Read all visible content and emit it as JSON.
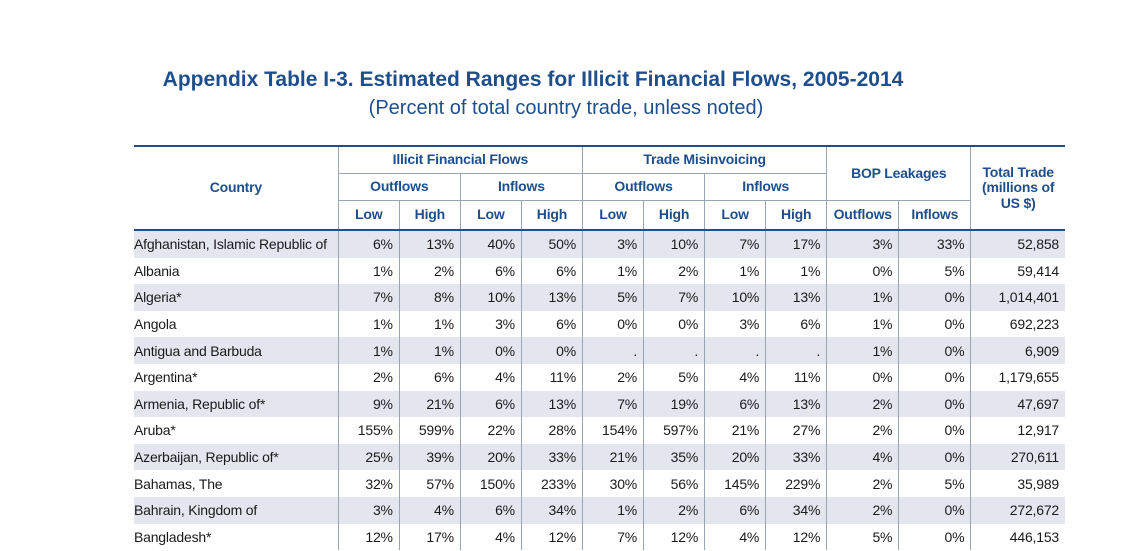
{
  "title": "Appendix Table I-3. Estimated Ranges for Illicit Financial Flows, 2005-2014",
  "subtitle": "(Percent of total country trade, unless noted)",
  "headers": {
    "country": "Country",
    "iff": "Illicit Financial Flows",
    "trade_misinvoicing": "Trade Misinvoicing",
    "bop_leakages": "BOP Leakages",
    "total_trade": "Total Trade (millions of US $)",
    "outflows": "Outflows",
    "inflows": "Inflows",
    "low": "Low",
    "high": "High"
  },
  "rows": [
    {
      "country": "Afghanistan, Islamic Republic of",
      "vals": [
        "6%",
        "13%",
        "40%",
        "50%",
        "3%",
        "10%",
        "7%",
        "17%",
        "3%",
        "33%",
        "52,858"
      ]
    },
    {
      "country": "Albania",
      "vals": [
        "1%",
        "2%",
        "6%",
        "6%",
        "1%",
        "2%",
        "1%",
        "1%",
        "0%",
        "5%",
        "59,414"
      ]
    },
    {
      "country": "Algeria*",
      "vals": [
        "7%",
        "8%",
        "10%",
        "13%",
        "5%",
        "7%",
        "10%",
        "13%",
        "1%",
        "0%",
        "1,014,401"
      ]
    },
    {
      "country": "Angola",
      "vals": [
        "1%",
        "1%",
        "3%",
        "6%",
        "0%",
        "0%",
        "3%",
        "6%",
        "1%",
        "0%",
        "692,223"
      ]
    },
    {
      "country": "Antigua and Barbuda",
      "vals": [
        "1%",
        "1%",
        "0%",
        "0%",
        ".",
        ".",
        ".",
        ".",
        "1%",
        "0%",
        "6,909"
      ]
    },
    {
      "country": "Argentina*",
      "vals": [
        "2%",
        "6%",
        "4%",
        "11%",
        "2%",
        "5%",
        "4%",
        "11%",
        "0%",
        "0%",
        "1,179,655"
      ]
    },
    {
      "country": "Armenia, Republic of*",
      "vals": [
        "9%",
        "21%",
        "6%",
        "13%",
        "7%",
        "19%",
        "6%",
        "13%",
        "2%",
        "0%",
        "47,697"
      ]
    },
    {
      "country": "Aruba*",
      "vals": [
        "155%",
        "599%",
        "22%",
        "28%",
        "154%",
        "597%",
        "21%",
        "27%",
        "2%",
        "0%",
        "12,917"
      ]
    },
    {
      "country": "Azerbaijan, Republic of*",
      "vals": [
        "25%",
        "39%",
        "20%",
        "33%",
        "21%",
        "35%",
        "20%",
        "33%",
        "4%",
        "0%",
        "270,611"
      ]
    },
    {
      "country": "Bahamas, The",
      "vals": [
        "32%",
        "57%",
        "150%",
        "233%",
        "30%",
        "56%",
        "145%",
        "229%",
        "2%",
        "5%",
        "35,989"
      ]
    },
    {
      "country": "Bahrain, Kingdom of",
      "vals": [
        "3%",
        "4%",
        "6%",
        "34%",
        "1%",
        "2%",
        "6%",
        "34%",
        "2%",
        "0%",
        "272,672"
      ]
    },
    {
      "country": "Bangladesh*",
      "vals": [
        "12%",
        "17%",
        "4%",
        "12%",
        "7%",
        "12%",
        "4%",
        "12%",
        "5%",
        "0%",
        "446,153"
      ]
    }
  ]
}
